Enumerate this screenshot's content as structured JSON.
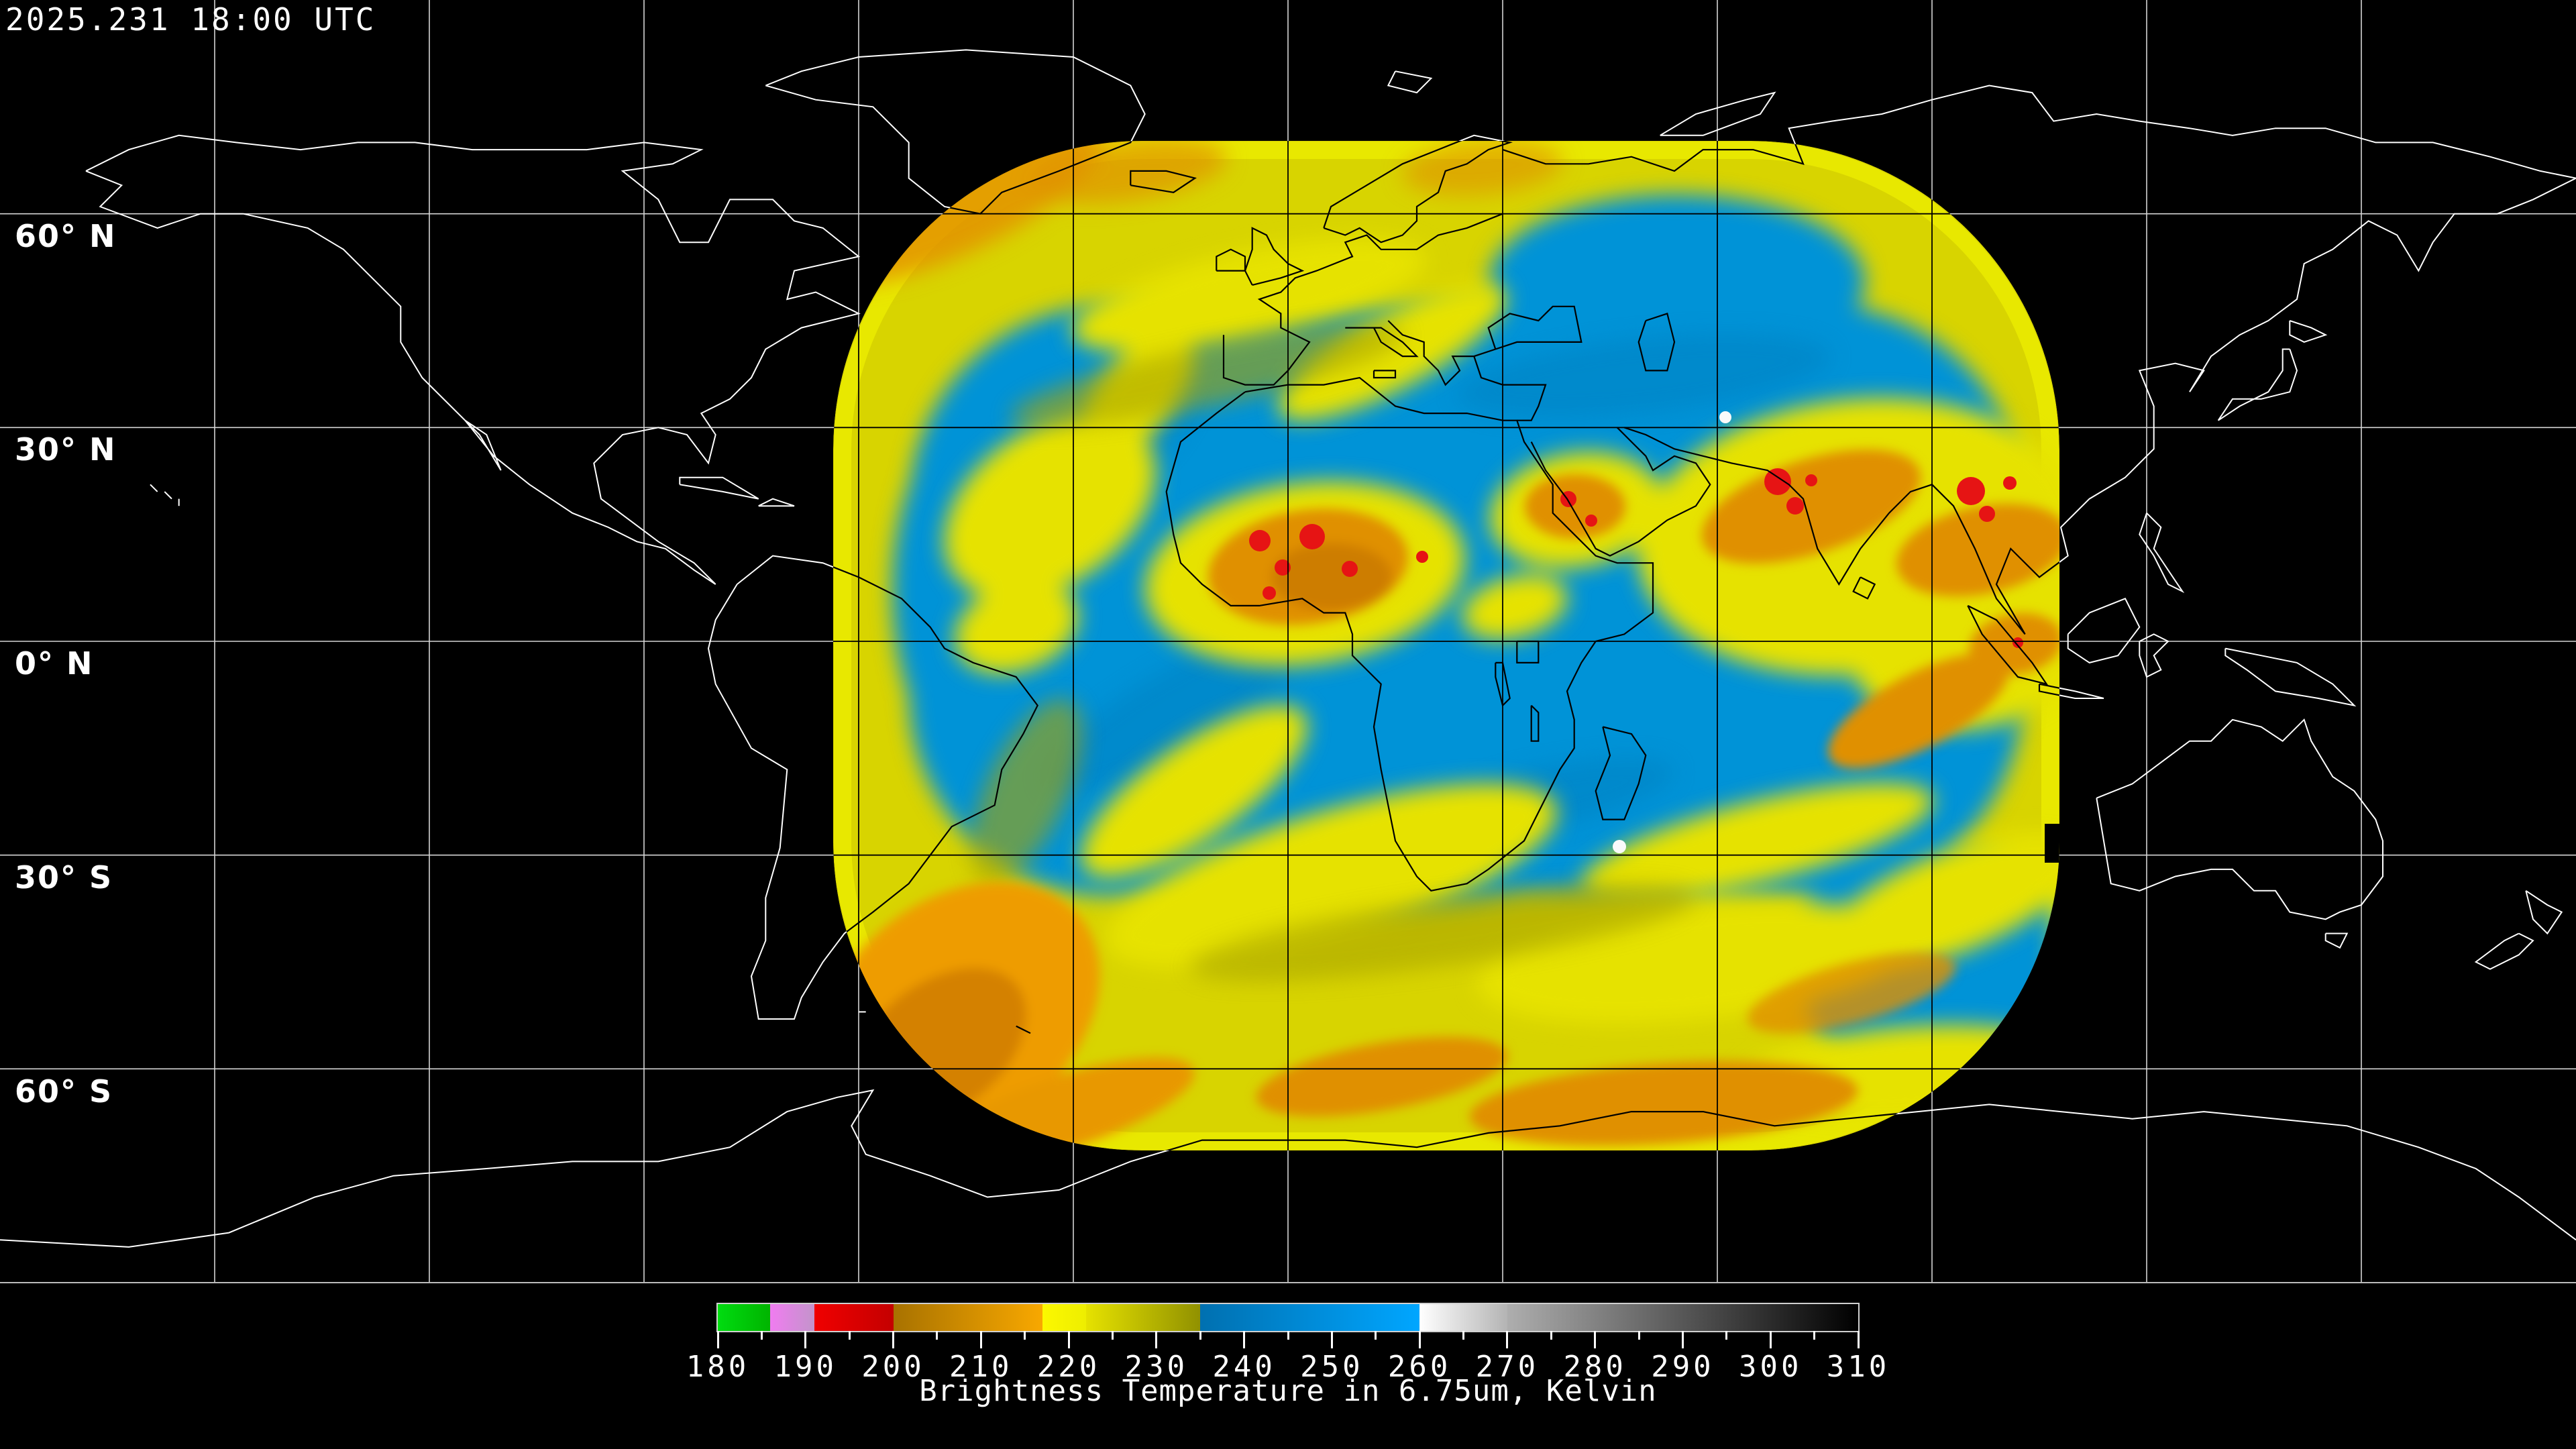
{
  "header": {
    "timestamp": "2025.231 18:00 UTC"
  },
  "map": {
    "background_color": "#000000",
    "coastline_color_outside_swath": "#ffffff",
    "coastline_color_inside_swath": "#000000",
    "graticule": {
      "lon_step_deg": 30,
      "lat_step_deg": 30,
      "line_color": "#f0f0f0"
    },
    "latitude_labels": [
      "60° N",
      "30° N",
      "0° N",
      "30° S",
      "60° S"
    ]
  },
  "satellite_swath": {
    "palette": {
      "moist_yellow": "#e2de00",
      "olive": "#a8a400",
      "dry_blue": "#0093d7",
      "cold_orange": "#e09000",
      "deep_convection_red": "#e61414",
      "overshoot_white": "#fafafa"
    }
  },
  "colorbar": {
    "title": "Brightness Temperature in 6.75um, Kelvin",
    "units": "Kelvin",
    "min": 180,
    "max": 310,
    "major_ticks": [
      180,
      190,
      200,
      210,
      220,
      230,
      240,
      250,
      260,
      270,
      280,
      290,
      300,
      310
    ],
    "minor_tick_step": 5,
    "segments": [
      {
        "from": 180,
        "to": 186,
        "start": "#00dc10",
        "end": "#00b400"
      },
      {
        "from": 186,
        "to": 191,
        "start": "#f07cf0",
        "end": "#c394cb"
      },
      {
        "from": 191,
        "to": 200,
        "start": "#f00000",
        "end": "#c40000"
      },
      {
        "from": 200,
        "to": 217,
        "start": "#a87200",
        "end": "#f8a800"
      },
      {
        "from": 217,
        "to": 222,
        "start": "#fcf800",
        "end": "#eeee00"
      },
      {
        "from": 222,
        "to": 235,
        "start": "#e6e200",
        "end": "#919100"
      },
      {
        "from": 235,
        "to": 260,
        "start": "#0070b0",
        "end": "#00a6ff"
      },
      {
        "from": 260,
        "to": 270,
        "start": "#ffffff",
        "end": "#b4b4b4"
      },
      {
        "from": 270,
        "to": 310,
        "start": "#aeaeae",
        "end": "#000000"
      }
    ]
  },
  "chart_data": {
    "type": "heatmap",
    "title": "Brightness Temperature in 6.75um, Kelvin",
    "legend_range": [
      180,
      310
    ],
    "legend_tick_labels": [
      "180",
      "190",
      "200",
      "210",
      "220",
      "230",
      "240",
      "250",
      "260",
      "270",
      "280",
      "290",
      "300",
      "310"
    ],
    "value_meaning": "satellite water-vapor channel brightness temperature over a geostationary full-disk swath"
  }
}
